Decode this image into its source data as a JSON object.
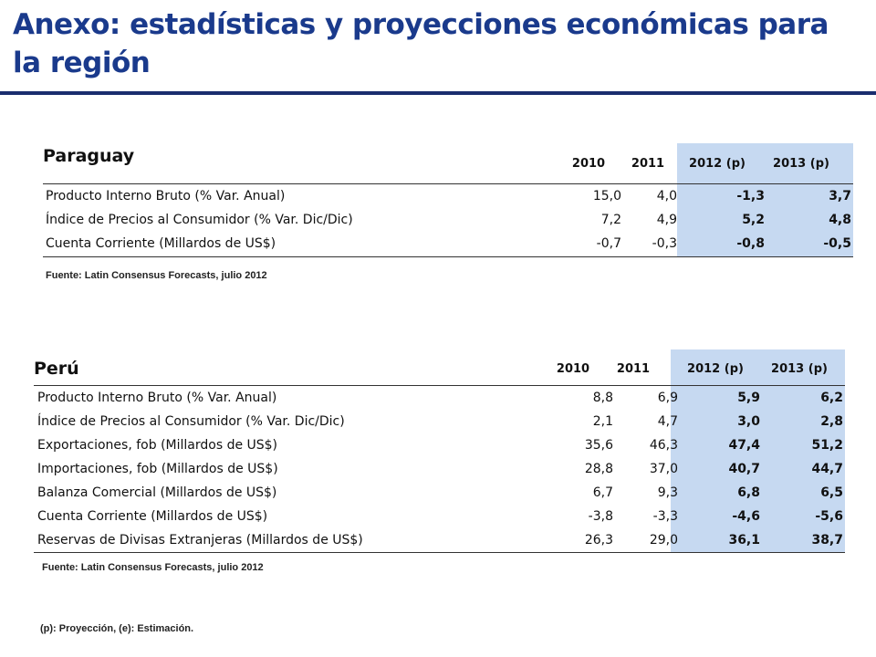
{
  "title": "Anexo: estadísticas y proyecciones económicas para la región",
  "colors": {
    "title": "#1a3a8c",
    "rule": "#1a2d6e",
    "projection_highlight": "#c6d9f1"
  },
  "paraguay": {
    "country": "Paraguay",
    "years": [
      "2010",
      "2011",
      "2012 (p)",
      "2013 (p)"
    ],
    "rows": [
      {
        "label": "Producto Interno Bruto (% Var. Anual)",
        "values": [
          "15,0",
          "4,0",
          "-1,3",
          "3,7"
        ]
      },
      {
        "label": "Índice de Precios al Consumidor (% Var. Dic/Dic)",
        "values": [
          "7,2",
          "4,9",
          "5,2",
          "4,8"
        ]
      },
      {
        "label": "Cuenta Corriente (Millardos de US$)",
        "values": [
          "-0,7",
          "-0,3",
          "-0,8",
          "-0,5"
        ]
      }
    ],
    "source": "Fuente: Latin Consensus Forecasts, julio 2012"
  },
  "peru": {
    "country": "Perú",
    "years": [
      "2010",
      "2011",
      "2012 (p)",
      "2013 (p)"
    ],
    "rows": [
      {
        "label": "Producto Interno Bruto (% Var. Anual)",
        "values": [
          "8,8",
          "6,9",
          "5,9",
          "6,2"
        ]
      },
      {
        "label": "Índice de Precios al Consumidor (% Var. Dic/Dic)",
        "values": [
          "2,1",
          "4,7",
          "3,0",
          "2,8"
        ]
      },
      {
        "label": "Exportaciones, fob (Millardos de US$)",
        "values": [
          "35,6",
          "46,3",
          "47,4",
          "51,2"
        ]
      },
      {
        "label": "Importaciones, fob (Millardos de US$)",
        "values": [
          "28,8",
          "37,0",
          "40,7",
          "44,7"
        ]
      },
      {
        "label": "Balanza Comercial (Millardos de US$)",
        "values": [
          "6,7",
          "9,3",
          "6,8",
          "6,5"
        ]
      },
      {
        "label": "Cuenta Corriente (Millardos de US$)",
        "values": [
          "-3,8",
          "-3,3",
          "-4,6",
          "-5,6"
        ]
      },
      {
        "label": "Reservas de Divisas Extranjeras (Millardos de US$)",
        "values": [
          "26,3",
          "29,0",
          "36,1",
          "38,7"
        ]
      }
    ],
    "source": "Fuente: Latin Consensus Forecasts, julio 2012"
  },
  "note": "(p): Proyección, (e): Estimación."
}
